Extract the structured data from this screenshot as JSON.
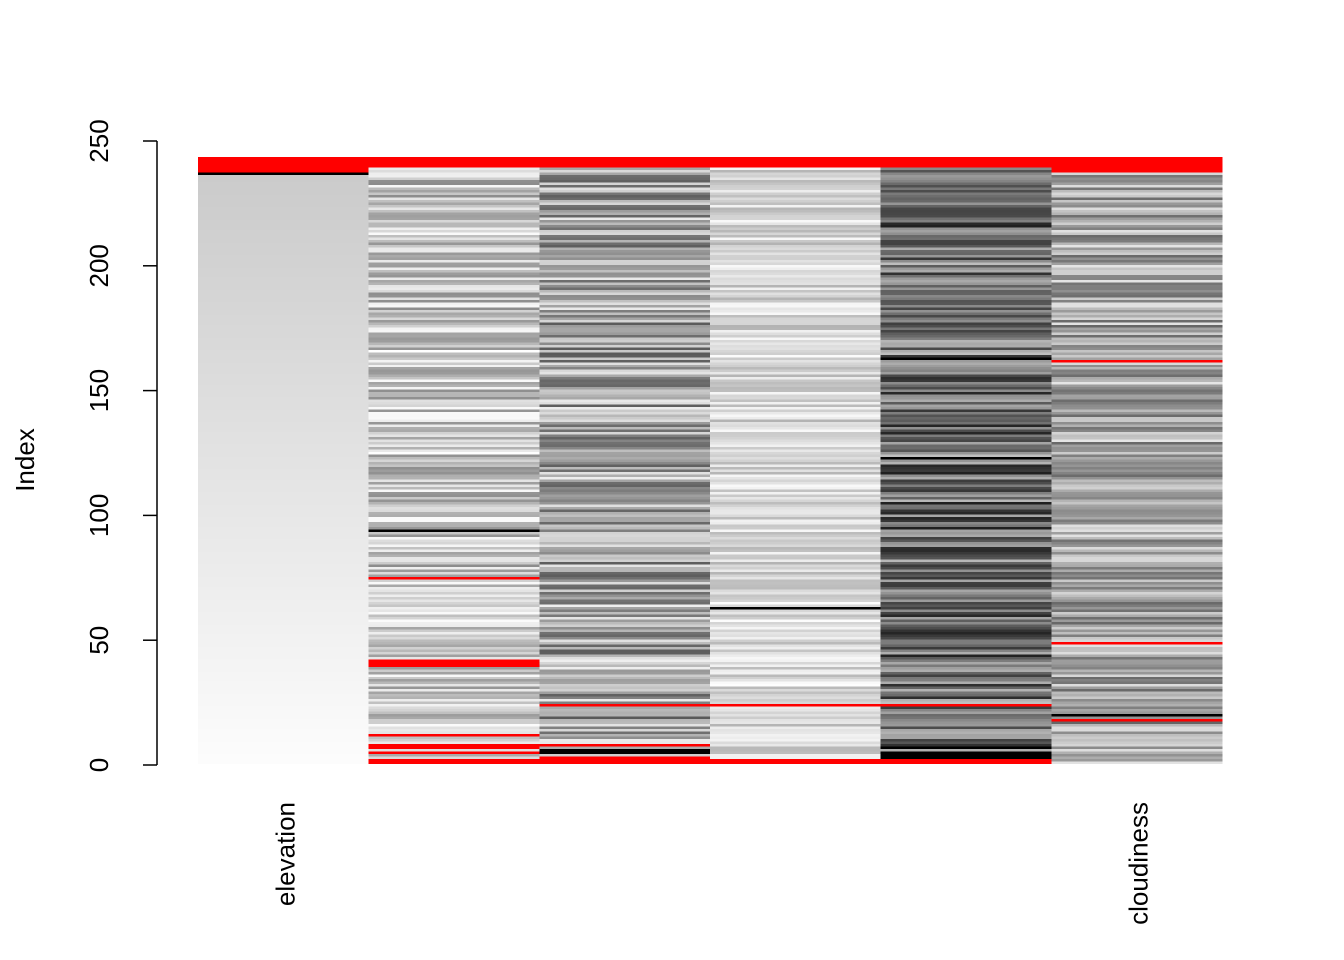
{
  "chart_data": {
    "type": "heatmap",
    "title": "",
    "xlabel": "",
    "ylabel": "Index",
    "ylim": [
      0,
      250
    ],
    "y_ticks": [
      0,
      50,
      100,
      150,
      200,
      250
    ],
    "y_tick_labels": [
      "0",
      "50",
      "100",
      "150",
      "200",
      "250"
    ],
    "n_rows": 243,
    "columns": [
      {
        "label": "elevation"
      },
      {
        "label": ""
      },
      {
        "label": ""
      },
      {
        "label": ""
      },
      {
        "label": ""
      },
      {
        "label": "cloudiness"
      }
    ],
    "color_scale": {
      "low": "#000000",
      "high": "#ffffff"
    },
    "missing_color": "#ff0000",
    "missing_values": [
      {
        "column": 0,
        "rows": [
          238,
          239,
          240,
          241,
          242,
          243
        ]
      },
      {
        "column": 1,
        "rows": [
          1,
          2,
          5,
          7,
          8,
          12,
          40,
          41,
          42,
          75,
          240,
          241,
          242,
          243
        ]
      },
      {
        "column": 2,
        "rows": [
          1,
          2,
          3,
          8,
          24,
          240,
          241,
          242,
          243
        ]
      },
      {
        "column": 3,
        "rows": [
          1,
          2,
          24,
          240,
          241,
          242,
          243
        ]
      },
      {
        "column": 4,
        "rows": [
          1,
          2,
          24,
          240,
          241,
          242,
          243
        ]
      },
      {
        "column": 5,
        "rows": [
          18,
          49,
          162,
          238,
          239,
          240,
          241,
          242,
          243
        ]
      }
    ],
    "dark_lines": [
      {
        "column": 0,
        "rows": [
          237
        ]
      },
      {
        "column": 1,
        "rows": [
          94
        ]
      },
      {
        "column": 2,
        "rows": [
          5,
          6
        ]
      },
      {
        "column": 3,
        "rows": [
          63
        ]
      },
      {
        "column": 4,
        "rows": [
          3,
          4,
          5,
          7,
          123,
          163
        ]
      },
      {
        "column": 5,
        "rows": [
          20
        ]
      }
    ]
  }
}
